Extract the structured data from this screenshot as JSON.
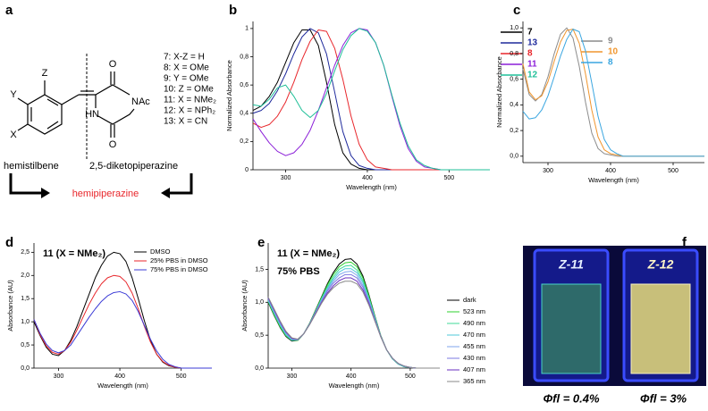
{
  "panel_labels": [
    "a",
    "b",
    "c",
    "d",
    "e",
    "f"
  ],
  "scheme": {
    "substituents": [
      "Z",
      "Y",
      "X"
    ],
    "ring_atoms": [
      "O",
      "NAc",
      "HN",
      "O"
    ],
    "compounds": [
      "7: X-Z = H",
      "8: X = OMe",
      "9: Y = OMe",
      "10: Z = OMe",
      "11: X = NMe₂",
      "12: X = NPh₂",
      "13: X = CN"
    ],
    "fragments": [
      "hemistilbene",
      "2,5-diketopiperazine"
    ],
    "product": "hemipiperazine"
  },
  "chart_data": [
    {
      "type": "line",
      "xlabel": "Wavelength (nm)",
      "ylabel": "Normalized Absorbance",
      "legend": "right",
      "legend_style": "bold-colored",
      "x": [
        260,
        270,
        280,
        290,
        300,
        310,
        320,
        330,
        340,
        350,
        360,
        370,
        380,
        390,
        400,
        410,
        420,
        430,
        440,
        450,
        460,
        470,
        480,
        490,
        500,
        510,
        520,
        530,
        540,
        550
      ],
      "xlim": [
        260,
        550
      ],
      "xticks": [
        300,
        400,
        500
      ],
      "ylim": [
        0,
        1.05
      ],
      "yticks": [
        0,
        {
          "value": 0.2,
          "label": "0,2"
        },
        {
          "value": 0.4,
          "label": "0,4"
        },
        {
          "value": 0.6,
          "label": "0,6"
        },
        {
          "value": 0.8,
          "label": "0,8"
        },
        1
      ],
      "series": [
        {
          "name": "7",
          "color": "#000000",
          "values": [
            0.42,
            0.45,
            0.52,
            0.62,
            0.76,
            0.9,
            0.99,
            0.99,
            0.88,
            0.62,
            0.32,
            0.12,
            0.04,
            0.01,
            0,
            0,
            0,
            0,
            0,
            0,
            0,
            0,
            0,
            0,
            0,
            0,
            0,
            0,
            0,
            0
          ]
        },
        {
          "name": "13",
          "color": "#1f2a9c",
          "values": [
            0.4,
            0.42,
            0.47,
            0.56,
            0.68,
            0.82,
            0.94,
            1.0,
            0.97,
            0.82,
            0.55,
            0.27,
            0.1,
            0.03,
            0.01,
            0,
            0,
            0,
            0,
            0,
            0,
            0,
            0,
            0,
            0,
            0,
            0,
            0,
            0,
            0
          ]
        },
        {
          "name": "8",
          "color": "#e8262b",
          "values": [
            0.33,
            0.3,
            0.32,
            0.38,
            0.48,
            0.62,
            0.78,
            0.91,
            0.99,
            0.98,
            0.86,
            0.64,
            0.38,
            0.18,
            0.07,
            0.02,
            0.01,
            0,
            0,
            0,
            0,
            0,
            0,
            0,
            0,
            0,
            0,
            0,
            0,
            0
          ]
        },
        {
          "name": "11",
          "color": "#8b1fd8",
          "values": [
            0.36,
            0.27,
            0.19,
            0.13,
            0.1,
            0.12,
            0.18,
            0.28,
            0.42,
            0.58,
            0.74,
            0.88,
            0.97,
            1.0,
            0.99,
            0.9,
            0.74,
            0.52,
            0.31,
            0.15,
            0.06,
            0.02,
            0.01,
            0,
            0,
            0,
            0,
            0,
            0,
            0
          ]
        },
        {
          "name": "12",
          "color": "#1fbf98",
          "values": [
            0.46,
            0.45,
            0.5,
            0.58,
            0.6,
            0.52,
            0.42,
            0.37,
            0.42,
            0.54,
            0.7,
            0.85,
            0.95,
            1.0,
            0.98,
            0.9,
            0.74,
            0.53,
            0.33,
            0.17,
            0.07,
            0.03,
            0.01,
            0,
            0,
            0,
            0,
            0,
            0,
            0
          ]
        }
      ]
    },
    {
      "type": "line",
      "xlabel": "Wavelength (nm)",
      "ylabel": "Normalized Absorbance",
      "legend": "right",
      "legend_style": "bold-colored",
      "x": [
        260,
        270,
        280,
        290,
        300,
        310,
        320,
        330,
        340,
        350,
        360,
        370,
        380,
        390,
        400,
        410,
        420,
        430,
        440,
        450,
        460,
        470,
        480,
        490,
        500,
        510,
        520,
        530,
        540,
        550
      ],
      "xlim": [
        260,
        550
      ],
      "xticks": [
        300,
        400,
        500
      ],
      "ylim": [
        -0.05,
        1.05
      ],
      "yticks": [
        {
          "value": 0,
          "label": "0,0"
        },
        {
          "value": 0.2,
          "label": "0,2"
        },
        {
          "value": 0.4,
          "label": "0,4"
        },
        {
          "value": 0.6,
          "label": "0,6"
        },
        {
          "value": 0.8,
          "label": "0,8"
        },
        {
          "value": 1,
          "label": "1,0"
        }
      ],
      "series": [
        {
          "name": "9",
          "color": "#8c8c8c",
          "values": [
            0.68,
            0.48,
            0.43,
            0.48,
            0.62,
            0.8,
            0.95,
            1.0,
            0.92,
            0.7,
            0.42,
            0.18,
            0.06,
            0.02,
            0.01,
            0,
            0,
            0,
            0,
            0,
            0,
            0,
            0,
            0,
            0,
            0,
            0,
            0,
            0,
            0
          ]
        },
        {
          "name": "10",
          "color": "#f0962e",
          "values": [
            0.72,
            0.5,
            0.44,
            0.47,
            0.58,
            0.74,
            0.89,
            0.98,
            0.99,
            0.88,
            0.64,
            0.36,
            0.15,
            0.05,
            0.02,
            0.01,
            0,
            0,
            0,
            0,
            0,
            0,
            0,
            0,
            0,
            0,
            0,
            0,
            0,
            0
          ]
        },
        {
          "name": "8",
          "color": "#3aa6e0",
          "values": [
            0.35,
            0.29,
            0.3,
            0.36,
            0.47,
            0.62,
            0.78,
            0.91,
            0.99,
            0.97,
            0.82,
            0.57,
            0.31,
            0.13,
            0.05,
            0.02,
            0,
            0,
            0,
            0,
            0,
            0,
            0,
            0,
            0,
            0,
            0,
            0,
            0,
            0
          ]
        }
      ]
    },
    {
      "type": "line",
      "xlabel": "Wavelength (nm)",
      "ylabel": "Absorbance (AU)",
      "legend": "upper right",
      "legend_style": "plain",
      "annotations": [
        "11 (X = NMe₂)"
      ],
      "x": [
        260,
        270,
        280,
        290,
        300,
        310,
        320,
        330,
        340,
        350,
        360,
        370,
        380,
        390,
        400,
        410,
        420,
        430,
        440,
        450,
        460,
        470,
        480,
        490,
        500,
        510,
        520,
        530,
        540,
        550
      ],
      "xlim": [
        260,
        550
      ],
      "xticks": [
        300,
        400,
        500
      ],
      "ylim": [
        0,
        2.7
      ],
      "yticks": [
        {
          "value": 0,
          "label": "0,0"
        },
        {
          "value": 0.5,
          "label": "0,5"
        },
        {
          "value": 1,
          "label": "1,0"
        },
        {
          "value": 1.5,
          "label": "1,5"
        },
        {
          "value": 2,
          "label": "2,0"
        },
        {
          "value": 2.5,
          "label": "2,5"
        }
      ],
      "series": [
        {
          "name": "DMSO",
          "color": "#000000",
          "values": [
            1.0,
            0.7,
            0.45,
            0.3,
            0.27,
            0.38,
            0.6,
            0.9,
            1.25,
            1.6,
            1.95,
            2.22,
            2.42,
            2.5,
            2.47,
            2.3,
            1.95,
            1.5,
            1.02,
            0.6,
            0.3,
            0.13,
            0.05,
            0.02,
            0,
            0,
            0,
            0,
            0,
            0
          ]
        },
        {
          "name": "25% PBS in DMSO",
          "color": "#e8262b",
          "values": [
            1.05,
            0.72,
            0.48,
            0.34,
            0.3,
            0.38,
            0.56,
            0.82,
            1.1,
            1.38,
            1.62,
            1.82,
            1.95,
            2.0,
            1.98,
            1.86,
            1.62,
            1.28,
            0.9,
            0.56,
            0.3,
            0.14,
            0.06,
            0.02,
            0,
            0,
            0,
            0,
            0,
            0
          ]
        },
        {
          "name": "75% PBS in DMSO",
          "color": "#3b3bd6",
          "values": [
            1.05,
            0.75,
            0.52,
            0.38,
            0.33,
            0.38,
            0.5,
            0.7,
            0.9,
            1.1,
            1.28,
            1.44,
            1.56,
            1.63,
            1.65,
            1.6,
            1.46,
            1.22,
            0.92,
            0.62,
            0.37,
            0.19,
            0.08,
            0.03,
            0,
            0,
            0,
            0,
            0,
            0
          ]
        }
      ]
    },
    {
      "type": "line",
      "xlabel": "Wavelength (nm)",
      "ylabel": "Absorbance (AU)",
      "legend": "right",
      "legend_style": "plain",
      "annotations": [
        "11 (X = NMe₂)",
        "75% PBS"
      ],
      "x": [
        260,
        270,
        280,
        290,
        300,
        310,
        320,
        330,
        340,
        350,
        360,
        370,
        380,
        390,
        400,
        410,
        420,
        430,
        440,
        450,
        460,
        470,
        480,
        490,
        500,
        510,
        520,
        530,
        540,
        550
      ],
      "xlim": [
        260,
        550
      ],
      "xticks": [
        300,
        400,
        500
      ],
      "ylim": [
        0,
        1.9
      ],
      "yticks": [
        {
          "value": 0,
          "label": "0,0"
        },
        {
          "value": 0.5,
          "label": "0,5"
        },
        {
          "value": 1,
          "label": "1,0"
        },
        {
          "value": 1.5,
          "label": "1,5"
        }
      ],
      "series": [
        {
          "name": "dark",
          "color": "#000000",
          "values": [
            1.0,
            0.8,
            0.62,
            0.48,
            0.41,
            0.42,
            0.52,
            0.68,
            0.88,
            1.08,
            1.28,
            1.45,
            1.58,
            1.65,
            1.66,
            1.58,
            1.4,
            1.12,
            0.8,
            0.5,
            0.28,
            0.14,
            0.06,
            0.02,
            0.01,
            0,
            0,
            0,
            0,
            0
          ]
        },
        {
          "name": "523 nm",
          "color": "#2fd12f",
          "values": [
            1.01,
            0.81,
            0.63,
            0.49,
            0.42,
            0.42,
            0.52,
            0.68,
            0.87,
            1.07,
            1.26,
            1.42,
            1.54,
            1.6,
            1.61,
            1.54,
            1.37,
            1.1,
            0.79,
            0.5,
            0.28,
            0.14,
            0.06,
            0.02,
            0.01,
            0,
            0,
            0,
            0,
            0
          ]
        },
        {
          "name": "490 nm",
          "color": "#3fd99a",
          "values": [
            1.02,
            0.83,
            0.65,
            0.5,
            0.42,
            0.43,
            0.52,
            0.67,
            0.86,
            1.05,
            1.23,
            1.38,
            1.5,
            1.55,
            1.56,
            1.49,
            1.33,
            1.07,
            0.78,
            0.49,
            0.28,
            0.14,
            0.06,
            0.02,
            0.01,
            0,
            0,
            0,
            0,
            0
          ]
        },
        {
          "name": "470 nm",
          "color": "#4fc8d8",
          "values": [
            1.03,
            0.84,
            0.66,
            0.51,
            0.43,
            0.43,
            0.52,
            0.67,
            0.85,
            1.04,
            1.21,
            1.35,
            1.46,
            1.51,
            1.51,
            1.45,
            1.3,
            1.05,
            0.77,
            0.49,
            0.28,
            0.14,
            0.06,
            0.02,
            0.01,
            0,
            0,
            0,
            0,
            0
          ]
        },
        {
          "name": "455 nm",
          "color": "#7fa6ee",
          "values": [
            1.05,
            0.86,
            0.68,
            0.53,
            0.44,
            0.43,
            0.52,
            0.67,
            0.85,
            1.02,
            1.19,
            1.32,
            1.42,
            1.46,
            1.47,
            1.41,
            1.26,
            1.03,
            0.75,
            0.49,
            0.28,
            0.15,
            0.07,
            0.03,
            0.01,
            0,
            0,
            0,
            0,
            0
          ]
        },
        {
          "name": "430 nm",
          "color": "#7b78e0",
          "values": [
            1.06,
            0.87,
            0.69,
            0.54,
            0.45,
            0.43,
            0.52,
            0.67,
            0.84,
            1.01,
            1.17,
            1.29,
            1.37,
            1.42,
            1.42,
            1.37,
            1.23,
            1.01,
            0.74,
            0.49,
            0.28,
            0.15,
            0.07,
            0.03,
            0.01,
            0,
            0,
            0,
            0,
            0
          ]
        },
        {
          "name": "407 nm",
          "color": "#6a2fc0",
          "values": [
            1.07,
            0.89,
            0.71,
            0.55,
            0.45,
            0.44,
            0.52,
            0.66,
            0.83,
            0.99,
            1.14,
            1.25,
            1.33,
            1.37,
            1.37,
            1.32,
            1.19,
            0.98,
            0.73,
            0.48,
            0.28,
            0.15,
            0.07,
            0.03,
            0.01,
            0,
            0,
            0,
            0,
            0
          ]
        },
        {
          "name": "365 nm",
          "color": "#8a8a8a",
          "values": [
            1.08,
            0.9,
            0.72,
            0.56,
            0.46,
            0.44,
            0.52,
            0.66,
            0.82,
            0.98,
            1.12,
            1.22,
            1.29,
            1.32,
            1.32,
            1.28,
            1.16,
            0.96,
            0.72,
            0.48,
            0.28,
            0.15,
            0.07,
            0.03,
            0.01,
            0,
            0,
            0,
            0,
            0
          ]
        }
      ]
    }
  ],
  "photo": {
    "samples": [
      {
        "label": "Z-11",
        "caption": "Φfl = 0.4%"
      },
      {
        "label": "Z-12",
        "caption": "Φfl = 3%"
      }
    ]
  }
}
